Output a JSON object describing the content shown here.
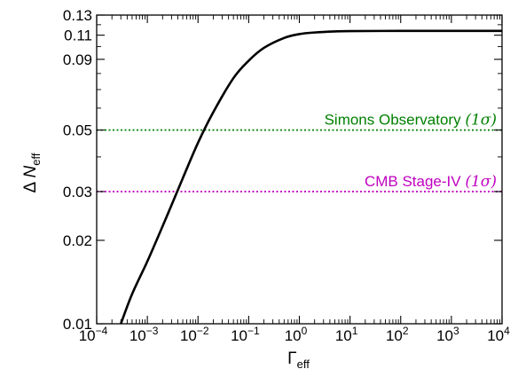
{
  "chart_data": {
    "type": "line",
    "xscale": "log",
    "yscale": "log",
    "xlim": [
      0.0001,
      10000
    ],
    "ylim": [
      0.01,
      0.13
    ],
    "xlabel": {
      "base": "Γ",
      "sub": "eff"
    },
    "ylabel": {
      "prefix": "Δ",
      "base": "N",
      "sub": "eff"
    },
    "grid": false,
    "x_ticks": [
      {
        "value": 0.0001,
        "base": "10",
        "exp": "−4"
      },
      {
        "value": 0.001,
        "base": "10",
        "exp": "−3"
      },
      {
        "value": 0.01,
        "base": "10",
        "exp": "−2"
      },
      {
        "value": 0.1,
        "base": "10",
        "exp": "−1"
      },
      {
        "value": 1,
        "base": "10",
        "exp": "0"
      },
      {
        "value": 10,
        "base": "10",
        "exp": "1"
      },
      {
        "value": 100,
        "base": "10",
        "exp": "2"
      },
      {
        "value": 1000,
        "base": "10",
        "exp": "3"
      },
      {
        "value": 10000,
        "base": "10",
        "exp": "4"
      }
    ],
    "y_ticks": [
      {
        "value": 0.01,
        "label": "0.01"
      },
      {
        "value": 0.02,
        "label": "0.02"
      },
      {
        "value": 0.03,
        "label": "0.03"
      },
      {
        "value": 0.05,
        "label": "0.05"
      },
      {
        "value": 0.09,
        "label": "0.09"
      },
      {
        "value": 0.11,
        "label": "0.11"
      },
      {
        "value": 0.13,
        "label": "0.13"
      }
    ],
    "series": [
      {
        "color": "#000000",
        "style": "solid",
        "x": [
          0.0003,
          0.0005,
          0.001,
          0.002,
          0.003,
          0.005,
          0.01,
          0.02,
          0.05,
          0.1,
          0.2,
          0.5,
          1,
          2,
          5,
          10,
          100,
          1000,
          10000
        ],
        "y": [
          0.01,
          0.0128,
          0.0168,
          0.0225,
          0.0268,
          0.0335,
          0.045,
          0.058,
          0.077,
          0.089,
          0.099,
          0.1075,
          0.111,
          0.1125,
          0.1135,
          0.1138,
          0.114,
          0.114,
          0.114
        ]
      }
    ],
    "hlines": [
      {
        "y": 0.05,
        "color": "#008000",
        "style": "dotted",
        "label": "Simons Observatory",
        "sigma": "(1σ)"
      },
      {
        "y": 0.03,
        "color": "#c000c0",
        "style": "dotted",
        "label": "CMB Stage-IV",
        "sigma": "(1σ)"
      }
    ]
  }
}
